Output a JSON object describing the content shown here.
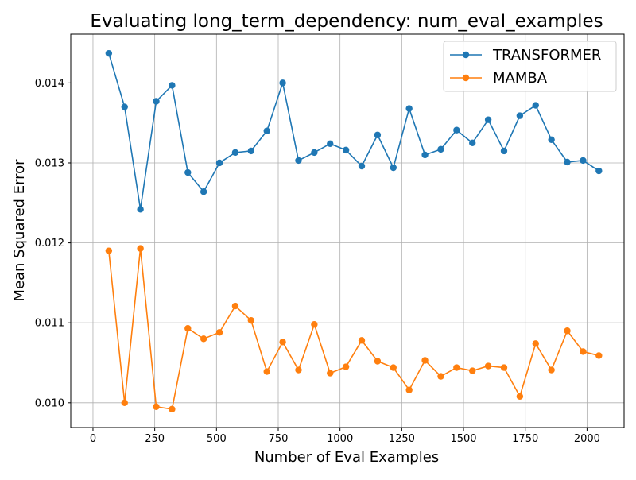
{
  "chart_data": {
    "type": "line",
    "title": "Evaluating long_term_dependency: num_eval_examples",
    "xlabel": "Number of Eval Examples",
    "ylabel": "Mean Squared Error",
    "xlim": [
      -90,
      2150
    ],
    "ylim": [
      0.00969,
      0.01461
    ],
    "xticks": [
      0,
      250,
      500,
      750,
      1000,
      1250,
      1500,
      1750,
      2000
    ],
    "xtick_labels": [
      "0",
      "250",
      "500",
      "750",
      "1000",
      "1250",
      "1500",
      "1750",
      "2000"
    ],
    "yticks": [
      0.01,
      0.011,
      0.012,
      0.013,
      0.014
    ],
    "ytick_labels": [
      "0.010",
      "0.011",
      "0.012",
      "0.013",
      "0.014"
    ],
    "grid": true,
    "legend_position": "top-right",
    "x": [
      64,
      128,
      192,
      256,
      320,
      384,
      448,
      512,
      576,
      640,
      704,
      768,
      832,
      896,
      960,
      1024,
      1088,
      1152,
      1216,
      1280,
      1344,
      1408,
      1472,
      1536,
      1600,
      1664,
      1728,
      1792,
      1856,
      1920,
      1984,
      2048
    ],
    "series": [
      {
        "name": "TRANSFORMER",
        "color": "#1f77b4",
        "values": [
          0.01437,
          0.0137,
          0.01242,
          0.01377,
          0.01397,
          0.01288,
          0.01264,
          0.013,
          0.01313,
          0.01315,
          0.0134,
          0.014,
          0.01303,
          0.01313,
          0.01324,
          0.01316,
          0.01296,
          0.01335,
          0.01294,
          0.01368,
          0.0131,
          0.01317,
          0.01341,
          0.01325,
          0.01354,
          0.01315,
          0.01359,
          0.01372,
          0.01329,
          0.01301,
          0.01303,
          0.0129
        ]
      },
      {
        "name": "MAMBA",
        "color": "#ff7f0e",
        "values": [
          0.0119,
          0.01,
          0.01193,
          0.00995,
          0.00992,
          0.01093,
          0.0108,
          0.01088,
          0.01121,
          0.01103,
          0.01039,
          0.01076,
          0.01041,
          0.01098,
          0.01037,
          0.01045,
          0.01078,
          0.01052,
          0.01044,
          0.01016,
          0.01053,
          0.01033,
          0.01044,
          0.0104,
          0.01046,
          0.01044,
          0.01008,
          0.01074,
          0.01041,
          0.0109,
          0.01064,
          0.01059
        ]
      }
    ]
  }
}
